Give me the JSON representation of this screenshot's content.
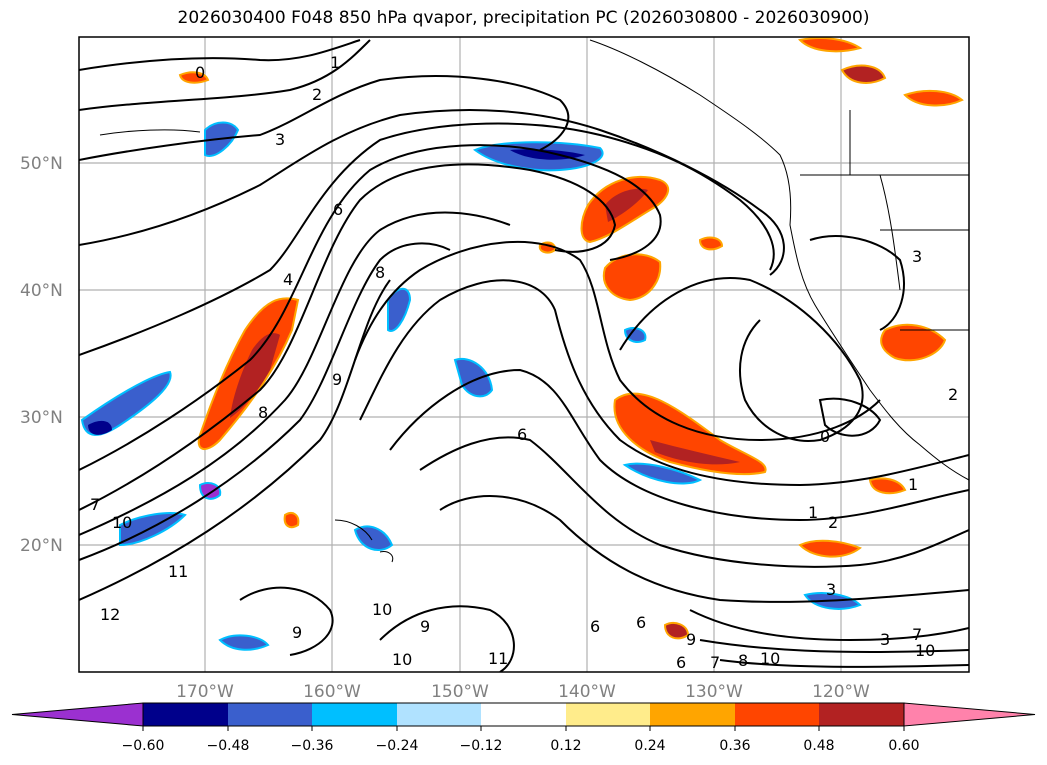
{
  "title": "2026030400 F048 850 hPa qvapor, precipitation PC (2026030800 - 2026030900)",
  "map": {
    "lat_labels": [
      "50°N",
      "40°N",
      "30°N",
      "20°N"
    ],
    "lon_labels": [
      "170°W",
      "160°W",
      "150°W",
      "140°W",
      "130°W",
      "120°W"
    ],
    "contours": [
      {
        "label": "0"
      },
      {
        "label": "1"
      },
      {
        "label": "2"
      },
      {
        "label": "3"
      },
      {
        "label": "4"
      },
      {
        "label": "6"
      },
      {
        "label": "8"
      },
      {
        "label": "9"
      },
      {
        "label": "7"
      },
      {
        "label": "10"
      },
      {
        "label": "11"
      },
      {
        "label": "12"
      },
      {
        "label": "3"
      },
      {
        "label": "8"
      },
      {
        "label": "6"
      },
      {
        "label": "0"
      },
      {
        "label": "1"
      },
      {
        "label": "2"
      },
      {
        "label": "3"
      },
      {
        "label": "1"
      },
      {
        "label": "2"
      },
      {
        "label": "10"
      },
      {
        "label": "9"
      },
      {
        "label": "9"
      },
      {
        "label": "10"
      },
      {
        "label": "11"
      },
      {
        "label": "6"
      },
      {
        "label": "6"
      },
      {
        "label": "9"
      },
      {
        "label": "6"
      },
      {
        "label": "7"
      },
      {
        "label": "10"
      },
      {
        "label": "3"
      },
      {
        "label": "7"
      },
      {
        "label": "8"
      },
      {
        "label": "10"
      }
    ]
  },
  "colorbar": {
    "tick_labels": [
      "−0.60",
      "−0.48",
      "−0.36",
      "−0.24",
      "−0.12",
      "0.12",
      "0.24",
      "0.36",
      "0.48",
      "0.60"
    ],
    "colors": [
      "#9b30d0",
      "#00008b",
      "#3a5fcd",
      "#00bfff",
      "#b0e2ff",
      "#ffffff",
      "#ffec8b",
      "#ffa500",
      "#ff4500",
      "#b22222",
      "#ff82ab"
    ],
    "extend": "both"
  }
}
